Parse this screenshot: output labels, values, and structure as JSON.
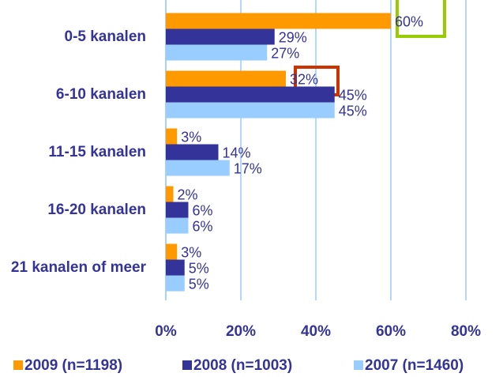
{
  "chart_data": {
    "type": "bar",
    "orientation": "horizontal",
    "categories": [
      "0-5 kanalen",
      "6-10 kanalen",
      "11-15 kanalen",
      "16-20 kanalen",
      "21 kanalen of meer"
    ],
    "series": [
      {
        "name": "2009 (n=1198)",
        "color": "#ff9900",
        "values": [
          60,
          32,
          3,
          2,
          3
        ],
        "value_labels": [
          "60%",
          "32%",
          "3%",
          "2%",
          "3%"
        ]
      },
      {
        "name": "2008 (n=1003)",
        "color": "#333399",
        "values": [
          29,
          45,
          14,
          6,
          5
        ],
        "value_labels": [
          "29%",
          "45%",
          "14%",
          "6%",
          "5%"
        ]
      },
      {
        "name": "2007 (n=1460)",
        "color": "#99ccff",
        "values": [
          27,
          45,
          17,
          6,
          5
        ],
        "value_labels": [
          "27%",
          "45%",
          "17%",
          "6%",
          "5%"
        ]
      }
    ],
    "xlim": [
      0,
      80
    ],
    "xticks": [
      {
        "value": 0,
        "label": "0%"
      },
      {
        "value": 20,
        "label": "20%"
      },
      {
        "value": 40,
        "label": "40%"
      },
      {
        "value": 60,
        "label": "60%"
      },
      {
        "value": 80,
        "label": "80%"
      }
    ],
    "grid": true,
    "legend": "bottom"
  }
}
